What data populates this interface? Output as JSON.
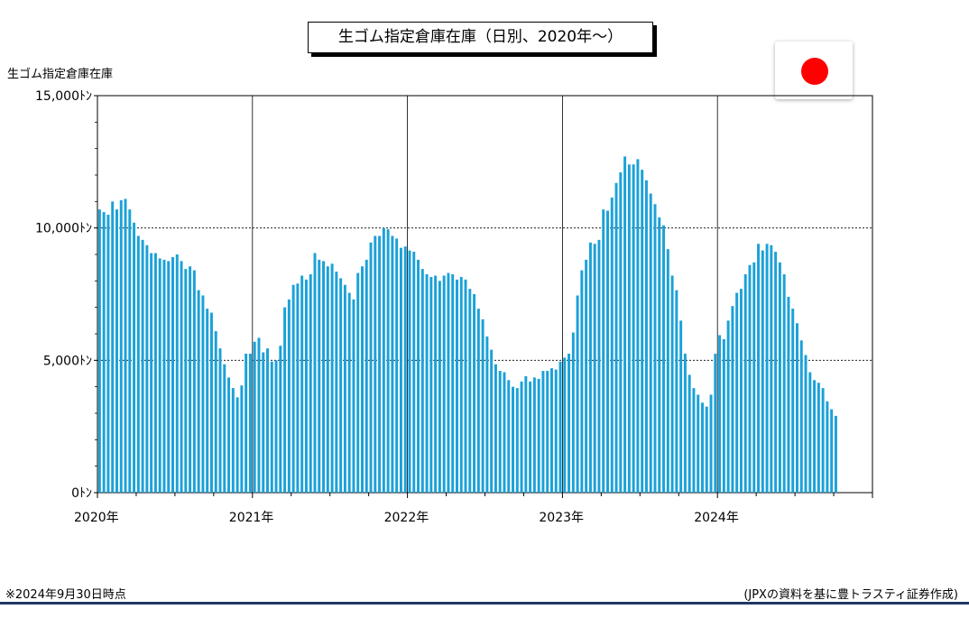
{
  "header": {
    "title": "生ゴム指定倉庫在庫（日別、2020年～）",
    "ylabel": "生ゴム指定倉庫在庫"
  },
  "footer": {
    "note": "※2024年9月30日時点",
    "source": "(JPXの資料を基に豊トラスティ証券作成)"
  },
  "colors": {
    "bar": "#1ba1d8",
    "rule": "#1f3864",
    "flag": "#ff0000"
  },
  "icons": {
    "flag": "japan-flag-icon"
  },
  "chart_data": {
    "type": "bar",
    "x_ticks": [
      "2020年",
      "2021年",
      "2022年",
      "2023年",
      "2024年"
    ],
    "y_ticks": [
      "15,000ﾄﾝ",
      "10,000ﾄﾝ",
      "5,000ﾄﾝ",
      "0ﾄﾝ"
    ],
    "y_tick_values": [
      15000,
      10000,
      5000,
      0
    ],
    "ylim": [
      0,
      15000
    ],
    "x_range_years": [
      2020,
      2025
    ],
    "grid": "horizontal dotted at 5,000 and 10,000; vertical solid at year boundaries",
    "start_year": 2020,
    "bars_per_year": 36,
    "values": [
      10700,
      10600,
      10500,
      11000,
      10700,
      11050,
      11100,
      10700,
      10200,
      9700,
      9550,
      9350,
      9050,
      9050,
      8850,
      8800,
      8750,
      8900,
      9000,
      8750,
      8450,
      8550,
      8400,
      7650,
      7450,
      6950,
      6800,
      6100,
      5450,
      4850,
      4350,
      3950,
      3600,
      4050,
      5250,
      5250,
      5700,
      5850,
      5300,
      5450,
      4950,
      5000,
      5550,
      7000,
      7300,
      7850,
      7900,
      8200,
      8050,
      8250,
      9050,
      8800,
      8750,
      8550,
      8650,
      8350,
      8100,
      7850,
      7550,
      7300,
      8300,
      8550,
      8800,
      9450,
      9700,
      9700,
      10000,
      9950,
      9700,
      9600,
      9250,
      9300,
      9150,
      9100,
      8800,
      8450,
      8250,
      8150,
      8200,
      8000,
      8200,
      8300,
      8250,
      8050,
      8150,
      8050,
      7700,
      7500,
      6950,
      6550,
      5900,
      5400,
      4850,
      4600,
      4550,
      4250,
      4000,
      3950,
      4200,
      4400,
      4200,
      4350,
      4300,
      4600,
      4600,
      4700,
      4650,
      4950,
      5100,
      5250,
      6050,
      7450,
      8400,
      8800,
      9450,
      9400,
      9550,
      10700,
      10650,
      11150,
      11700,
      12100,
      12700,
      12400,
      12400,
      12600,
      12200,
      11800,
      11300,
      10900,
      10400,
      10100,
      9200,
      8200,
      7650,
      6500,
      5250,
      4450,
      3950,
      3700,
      3400,
      3250,
      3700,
      5250,
      5950,
      5800,
      6500,
      7050,
      7550,
      7700,
      8250,
      8600,
      8700,
      9400,
      9150,
      9400,
      9350,
      9100,
      8700,
      8250,
      7400,
      6950,
      6400,
      5750,
      5200,
      4550,
      4250,
      4150,
      3950,
      3450,
      3150,
      2900
    ]
  }
}
